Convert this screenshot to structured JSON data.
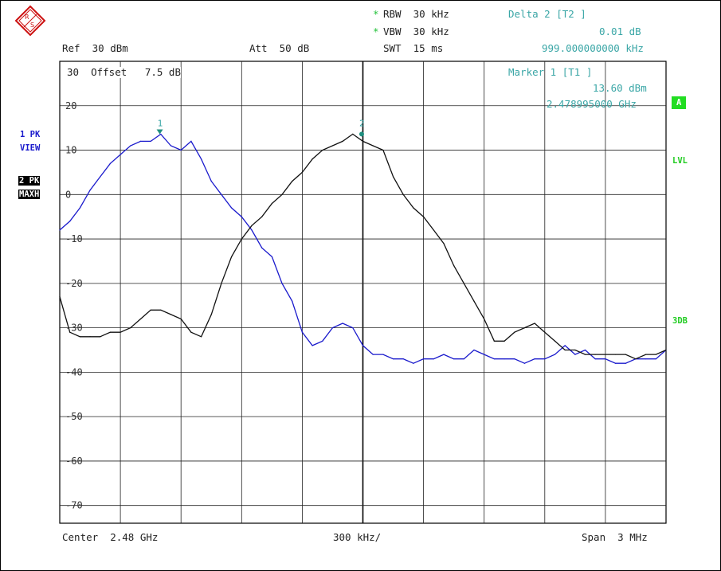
{
  "header": {
    "ref": "Ref  30 dBm",
    "att": "Att  50 dB",
    "rbw_star": "*",
    "rbw": "RBW  30 kHz",
    "vbw_star": "*",
    "vbw": "VBW  30 kHz",
    "swt": "SWT  15 ms",
    "delta_title": "Delta 2 [T2 ]",
    "delta_level": "0.01 dB",
    "delta_freq": "999.000000000 kHz"
  },
  "marker_box": {
    "title": "Marker 1 [T1 ]",
    "level": "13.60 dBm",
    "freq": "2.478995000 GHz"
  },
  "left_labels": {
    "trace1_a": "1 PK",
    "trace1_b": "VIEW",
    "trace2_a": "2 PK",
    "trace2_b": "MAXH"
  },
  "right_labels": {
    "a_badge": "A",
    "lvl": "LVL",
    "db3": "3DB"
  },
  "offset_label": "30  Offset   7.5 dB",
  "footer": {
    "center": "Center  2.48 GHz",
    "div": "300 kHz/",
    "span": "Span  3 MHz"
  },
  "colors": {
    "trace1": "#1a1acc",
    "trace2": "#111111",
    "grid": "#000000",
    "annotation": "#3aa6a6",
    "badge": "#22dd22"
  },
  "chart_data": {
    "type": "line",
    "title": "",
    "xlabel": "",
    "ylabel": "",
    "x_unit": "GHz",
    "xlim": [
      2.4785,
      2.4815
    ],
    "ylim": [
      -74,
      30
    ],
    "grid": true,
    "y_ticks": [
      20,
      10,
      0,
      -10,
      -20,
      -30,
      -40,
      -50,
      -60,
      -70
    ],
    "y_tick_labels": [
      "20",
      "10",
      "0",
      "-10",
      "-20",
      "-30",
      "-40",
      "-50",
      "-60",
      "-70"
    ],
    "markers": [
      {
        "label": "1",
        "x": 2.478995,
        "y": 13.6,
        "series": "1 PK VIEW"
      },
      {
        "label": "2",
        "x": 2.479994,
        "y": 13.61,
        "series": "2 PK MAXH"
      }
    ],
    "series": [
      {
        "name": "1 PK VIEW",
        "x": [
          2.4785,
          2.47855,
          2.4786,
          2.47865,
          2.4787,
          2.47875,
          2.4788,
          2.47885,
          2.4789,
          2.47895,
          2.479,
          2.47905,
          2.4791,
          2.47915,
          2.4792,
          2.47925,
          2.4793,
          2.47935,
          2.4794,
          2.47945,
          2.4795,
          2.47955,
          2.4796,
          2.47965,
          2.4797,
          2.47975,
          2.4798,
          2.47985,
          2.4799,
          2.47995,
          2.48,
          2.48005,
          2.4801,
          2.48015,
          2.4802,
          2.48025,
          2.4803,
          2.48035,
          2.4804,
          2.48045,
          2.4805,
          2.48055,
          2.4806,
          2.48065,
          2.4807,
          2.48075,
          2.4808,
          2.48085,
          2.4809,
          2.48095,
          2.481,
          2.48105,
          2.4811,
          2.48115,
          2.4812,
          2.48125,
          2.4813,
          2.48135,
          2.4814,
          2.48145,
          2.4815
        ],
        "values": [
          -8,
          -6,
          -3,
          1,
          4,
          7,
          9,
          11,
          12,
          12,
          13.6,
          11,
          10,
          12,
          8,
          3,
          0,
          -3,
          -5,
          -8,
          -12,
          -14,
          -20,
          -24,
          -31,
          -34,
          -33,
          -30,
          -29,
          -30,
          -34,
          -36,
          -36,
          -37,
          -37,
          -38,
          -37,
          -37,
          -36,
          -37,
          -37,
          -35,
          -36,
          -37,
          -37,
          -37,
          -38,
          -37,
          -37,
          -36,
          -34,
          -36,
          -35,
          -37,
          -37,
          -38,
          -38,
          -37,
          -37,
          -37,
          -35
        ]
      },
      {
        "name": "2 PK MAXH",
        "x": [
          2.4785,
          2.47855,
          2.4786,
          2.47865,
          2.4787,
          2.47875,
          2.4788,
          2.47885,
          2.4789,
          2.47895,
          2.479,
          2.47905,
          2.4791,
          2.47915,
          2.4792,
          2.47925,
          2.4793,
          2.47935,
          2.4794,
          2.47945,
          2.4795,
          2.47955,
          2.4796,
          2.47965,
          2.4797,
          2.47975,
          2.4798,
          2.47985,
          2.4799,
          2.47995,
          2.48,
          2.48005,
          2.4801,
          2.48015,
          2.4802,
          2.48025,
          2.4803,
          2.48035,
          2.4804,
          2.48045,
          2.4805,
          2.48055,
          2.4806,
          2.48065,
          2.4807,
          2.48075,
          2.4808,
          2.48085,
          2.4809,
          2.48095,
          2.481,
          2.48105,
          2.4811,
          2.48115,
          2.4812,
          2.48125,
          2.4813,
          2.48135,
          2.4814,
          2.48145,
          2.4815
        ],
        "values": [
          -23,
          -31,
          -32,
          -32,
          -32,
          -31,
          -31,
          -30,
          -28,
          -26,
          -26,
          -27,
          -28,
          -31,
          -32,
          -27,
          -20,
          -14,
          -10,
          -7,
          -5,
          -2,
          0,
          3,
          5,
          8,
          10,
          11,
          12,
          13.61,
          12,
          11,
          10,
          4,
          0,
          -3,
          -5,
          -8,
          -11,
          -16,
          -20,
          -24,
          -28,
          -33,
          -33,
          -31,
          -30,
          -29,
          -31,
          -33,
          -35,
          -35,
          -36,
          -36,
          -36,
          -36,
          -36,
          -37,
          -36,
          -36,
          -35
        ]
      }
    ]
  }
}
